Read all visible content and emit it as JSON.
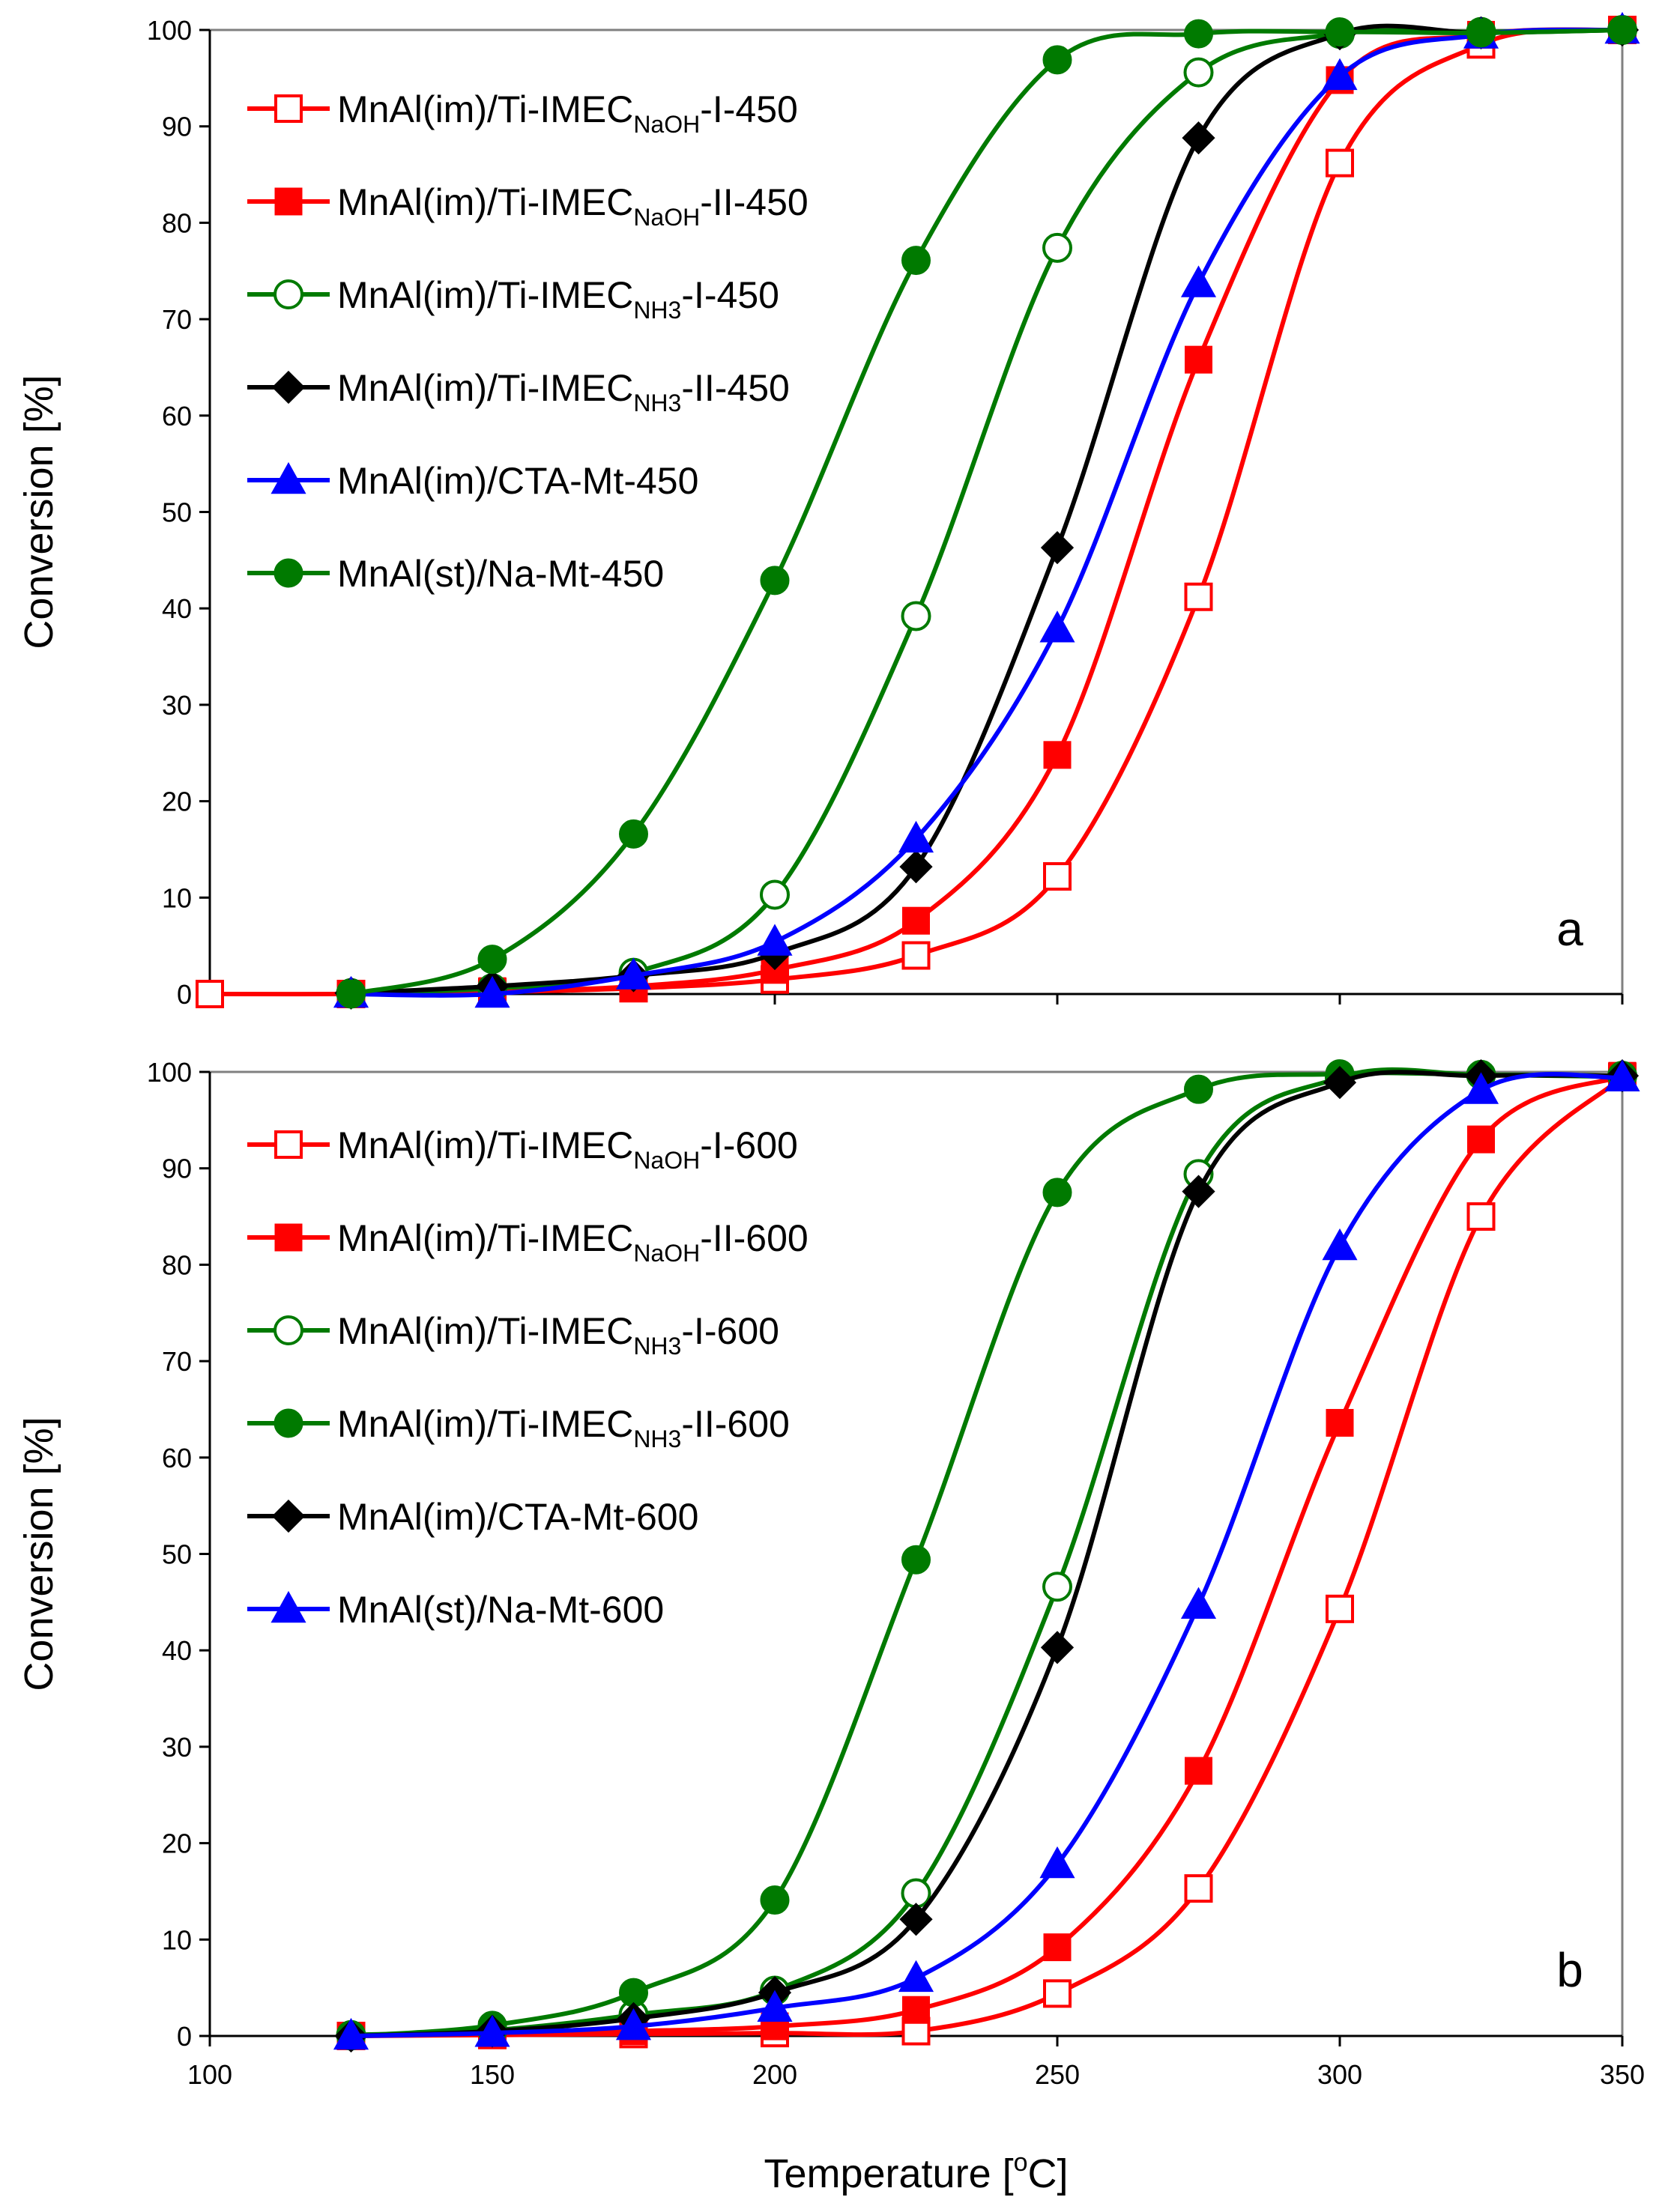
{
  "chart_data": [
    {
      "type": "line",
      "panel_label": "a",
      "ylabel": "Conversion [%]",
      "xlabel": "",
      "xlim": [
        100,
        350
      ],
      "ylim": [
        0,
        100
      ],
      "xticks": [
        100,
        150,
        200,
        250,
        300,
        350
      ],
      "yticks": [
        0,
        10,
        20,
        30,
        40,
        50,
        60,
        70,
        80,
        90,
        100
      ],
      "grid": false,
      "legend_position": "top-left",
      "series": [
        {
          "name": "MnAl(im)/Ti-IMEC-NaOH-I-450",
          "label_main": "MnAl(im)/Ti-IMEC",
          "label_sub": "NaOH",
          "label_tail": "-I-450",
          "color": "#ff0000",
          "marker": "square-open",
          "x": [
            100,
            125,
            150,
            175,
            200,
            225,
            250,
            275,
            300,
            325,
            350
          ],
          "y": [
            0,
            0,
            0.2,
            0.6,
            1.5,
            4,
            12.2,
            41.2,
            86.2,
            98.5,
            100
          ]
        },
        {
          "name": "MnAl(im)/Ti-IMEC-NaOH-II-450",
          "label_main": "MnAl(im)/Ti-IMEC",
          "label_sub": "NaOH",
          "label_tail": "-II-450",
          "color": "#ff0000",
          "marker": "square-filled",
          "x": [
            125,
            150,
            175,
            200,
            225,
            250,
            275,
            300,
            325,
            350
          ],
          "y": [
            0,
            0.3,
            0.8,
            2.5,
            7.6,
            24.8,
            65.8,
            94.8,
            99.5,
            100
          ]
        },
        {
          "name": "MnAl(im)/Ti-IMEC-NH3-I-450",
          "label_main": "MnAl(im)/Ti-IMEC",
          "label_sub": "NH3",
          "label_tail": "-I-450",
          "color": "#007a00",
          "marker": "circle-open",
          "x": [
            125,
            150,
            175,
            200,
            225,
            250,
            275,
            300,
            325,
            350
          ],
          "y": [
            0.1,
            0.6,
            2.2,
            10.3,
            39.2,
            77.4,
            95.6,
            99.6,
            99.8,
            100
          ]
        },
        {
          "name": "MnAl(im)/Ti-IMEC-NH3-II-450",
          "label_main": "MnAl(im)/Ti-IMEC",
          "label_sub": "NH3",
          "label_tail": "-II-450",
          "color": "#000000",
          "marker": "diamond-filled",
          "x": [
            125,
            150,
            175,
            200,
            225,
            250,
            275,
            300,
            325,
            350
          ],
          "y": [
            0.1,
            0.8,
            1.9,
            4.2,
            13.2,
            46.3,
            88.8,
            99.6,
            99.7,
            100
          ]
        },
        {
          "name": "MnAl(im)/CTA-Mt-450",
          "label_main": "MnAl(im)/CTA-Mt-450",
          "label_sub": "",
          "label_tail": "",
          "color": "#0000ff",
          "marker": "triangle-filled",
          "x": [
            125,
            150,
            175,
            200,
            225,
            250,
            275,
            300,
            325,
            350
          ],
          "y": [
            0,
            0,
            1.9,
            5.4,
            16.1,
            37.9,
            73.7,
            95.2,
            99.5,
            100
          ]
        },
        {
          "name": "MnAl(st)/Na-Mt-450",
          "label_main": "MnAl(st)/Na-Mt-450",
          "label_sub": "",
          "label_tail": "",
          "color": "#007a00",
          "marker": "circle-filled",
          "x": [
            125,
            150,
            175,
            200,
            225,
            250,
            275,
            300,
            325,
            350
          ],
          "y": [
            0,
            3.6,
            16.6,
            42.9,
            76.1,
            96.9,
            99.6,
            99.8,
            99.7,
            100
          ]
        }
      ]
    },
    {
      "type": "line",
      "panel_label": "b",
      "ylabel": "Conversion [%]",
      "xlabel": "Temperature [°C]",
      "xlabel_main": "Temperature [",
      "xlabel_sup": "o",
      "xlabel_tail": "C]",
      "xlim": [
        100,
        350
      ],
      "ylim": [
        0,
        100
      ],
      "xticks": [
        100,
        150,
        200,
        250,
        300,
        350
      ],
      "yticks": [
        0,
        10,
        20,
        30,
        40,
        50,
        60,
        70,
        80,
        90,
        100
      ],
      "grid": false,
      "legend_position": "top-left",
      "series": [
        {
          "name": "MnAl(im)/Ti-IMEC-NaOH-I-600",
          "label_main": "MnAl(im)/Ti-IMEC",
          "label_sub": "NaOH",
          "label_tail": "-I-600",
          "color": "#ff0000",
          "marker": "square-open",
          "x": [
            125,
            150,
            175,
            200,
            225,
            250,
            275,
            300,
            325,
            350
          ],
          "y": [
            0,
            0.1,
            0.2,
            0.3,
            0.5,
            4.4,
            15.3,
            44.3,
            85,
            99.5
          ]
        },
        {
          "name": "MnAl(im)/Ti-IMEC-NaOH-II-600",
          "label_main": "MnAl(im)/Ti-IMEC",
          "label_sub": "NaOH",
          "label_tail": "-II-600",
          "color": "#ff0000",
          "marker": "square-filled",
          "x": [
            125,
            150,
            175,
            200,
            225,
            250,
            275,
            300,
            325,
            350
          ],
          "y": [
            0,
            0.2,
            0.5,
            1,
            2.7,
            9.2,
            27.5,
            63.6,
            93,
            99.6
          ]
        },
        {
          "name": "MnAl(im)/Ti-IMEC-NH3-I-600",
          "label_main": "MnAl(im)/Ti-IMEC",
          "label_sub": "NH3",
          "label_tail": "-I-600",
          "color": "#007a00",
          "marker": "circle-open",
          "x": [
            125,
            150,
            175,
            200,
            225,
            250,
            275,
            300,
            325,
            350
          ],
          "y": [
            0.1,
            0.6,
            2.2,
            4.7,
            14.8,
            46.6,
            89.4,
            99.4,
            99.7,
            99.6
          ]
        },
        {
          "name": "MnAl(im)/Ti-IMEC-NH3-II-600",
          "label_main": "MnAl(im)/Ti-IMEC",
          "label_sub": "NH3",
          "label_tail": "-II-600",
          "color": "#007a00",
          "marker": "circle-filled",
          "x": [
            125,
            150,
            175,
            200,
            225,
            250,
            275,
            300,
            325,
            350
          ],
          "y": [
            0,
            1.1,
            4.5,
            14.1,
            49.4,
            87.5,
            98.2,
            99.8,
            99.7,
            99.5
          ]
        },
        {
          "name": "MnAl(im)/CTA-Mt-600",
          "label_main": "MnAl(im)/CTA-Mt-600",
          "label_sub": "",
          "label_tail": "",
          "color": "#000000",
          "marker": "diamond-filled",
          "x": [
            125,
            150,
            175,
            200,
            225,
            250,
            275,
            300,
            325,
            350
          ],
          "y": [
            0,
            0.5,
            1.8,
            4.5,
            12.1,
            40.3,
            87.6,
            98.9,
            99.6,
            99.6
          ]
        },
        {
          "name": "MnAl(st)/Na-Mt-600",
          "label_main": "MnAl(st)/Na-Mt-600",
          "label_sub": "",
          "label_tail": "",
          "color": "#0000ff",
          "marker": "triangle-filled",
          "x": [
            125,
            150,
            175,
            200,
            225,
            250,
            275,
            300,
            325,
            350
          ],
          "y": [
            0,
            0.3,
            1,
            2.9,
            6,
            17.8,
            44.7,
            81.9,
            98.1,
            99.4
          ]
        }
      ]
    }
  ]
}
